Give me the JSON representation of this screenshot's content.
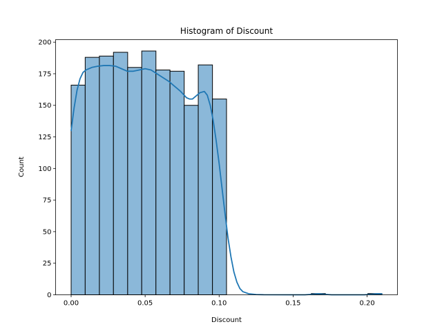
{
  "chart_data": {
    "type": "histogram",
    "title": "Histogram of Discount",
    "xlabel": "Discount",
    "ylabel": "Count",
    "xlim": [
      -0.0105,
      0.2205
    ],
    "ylim": [
      0,
      202
    ],
    "x_ticks": [
      0.0,
      0.05,
      0.1,
      0.15,
      0.2
    ],
    "x_tick_labels": [
      "0.00",
      "0.05",
      "0.10",
      "0.15",
      "0.20"
    ],
    "y_ticks": [
      0,
      25,
      50,
      75,
      100,
      125,
      150,
      175,
      200
    ],
    "y_tick_labels": [
      "0",
      "25",
      "50",
      "75",
      "100",
      "125",
      "150",
      "175",
      "200"
    ],
    "grid": false,
    "bar_color": "#8bb8d9",
    "bar_edge_color": "#000000",
    "kde_color": "#1f77b4",
    "bins": [
      {
        "x0": 0.0,
        "x1": 0.0095,
        "count": 166
      },
      {
        "x0": 0.0095,
        "x1": 0.0191,
        "count": 188
      },
      {
        "x0": 0.0191,
        "x1": 0.0286,
        "count": 189
      },
      {
        "x0": 0.0286,
        "x1": 0.0382,
        "count": 192
      },
      {
        "x0": 0.0382,
        "x1": 0.0477,
        "count": 180
      },
      {
        "x0": 0.0477,
        "x1": 0.0573,
        "count": 193
      },
      {
        "x0": 0.0573,
        "x1": 0.0668,
        "count": 178
      },
      {
        "x0": 0.0668,
        "x1": 0.0764,
        "count": 177
      },
      {
        "x0": 0.0764,
        "x1": 0.0859,
        "count": 150
      },
      {
        "x0": 0.0859,
        "x1": 0.0955,
        "count": 182
      },
      {
        "x0": 0.0955,
        "x1": 0.105,
        "count": 155
      },
      {
        "x0": 0.1623,
        "x1": 0.1718,
        "count": 1
      },
      {
        "x0": 0.2005,
        "x1": 0.21,
        "count": 1
      }
    ],
    "kde": [
      [
        0.0,
        130
      ],
      [
        0.002,
        148
      ],
      [
        0.004,
        162
      ],
      [
        0.006,
        171
      ],
      [
        0.008,
        176
      ],
      [
        0.01,
        178
      ],
      [
        0.014,
        180
      ],
      [
        0.018,
        181
      ],
      [
        0.022,
        181.5
      ],
      [
        0.026,
        181.5
      ],
      [
        0.03,
        181
      ],
      [
        0.034,
        179
      ],
      [
        0.038,
        177
      ],
      [
        0.042,
        177
      ],
      [
        0.046,
        178
      ],
      [
        0.05,
        179
      ],
      [
        0.054,
        178
      ],
      [
        0.058,
        175
      ],
      [
        0.062,
        172
      ],
      [
        0.066,
        169
      ],
      [
        0.07,
        165
      ],
      [
        0.074,
        161
      ],
      [
        0.078,
        156
      ],
      [
        0.08,
        155
      ],
      [
        0.082,
        155
      ],
      [
        0.084,
        157
      ],
      [
        0.087,
        160
      ],
      [
        0.09,
        161
      ],
      [
        0.092,
        158
      ],
      [
        0.094,
        150
      ],
      [
        0.096,
        138
      ],
      [
        0.098,
        122
      ],
      [
        0.1,
        104
      ],
      [
        0.102,
        84
      ],
      [
        0.104,
        64
      ],
      [
        0.106,
        45
      ],
      [
        0.108,
        30
      ],
      [
        0.11,
        18
      ],
      [
        0.112,
        10
      ],
      [
        0.114,
        5
      ],
      [
        0.116,
        2.5
      ],
      [
        0.12,
        0.8
      ],
      [
        0.125,
        0.2
      ],
      [
        0.13,
        0.05
      ],
      [
        0.15,
        0
      ],
      [
        0.158,
        0
      ],
      [
        0.163,
        0.4
      ],
      [
        0.167,
        0.8
      ],
      [
        0.171,
        0.4
      ],
      [
        0.176,
        0
      ],
      [
        0.198,
        0
      ],
      [
        0.203,
        0.4
      ],
      [
        0.207,
        0.8
      ],
      [
        0.21,
        0.7
      ]
    ]
  }
}
